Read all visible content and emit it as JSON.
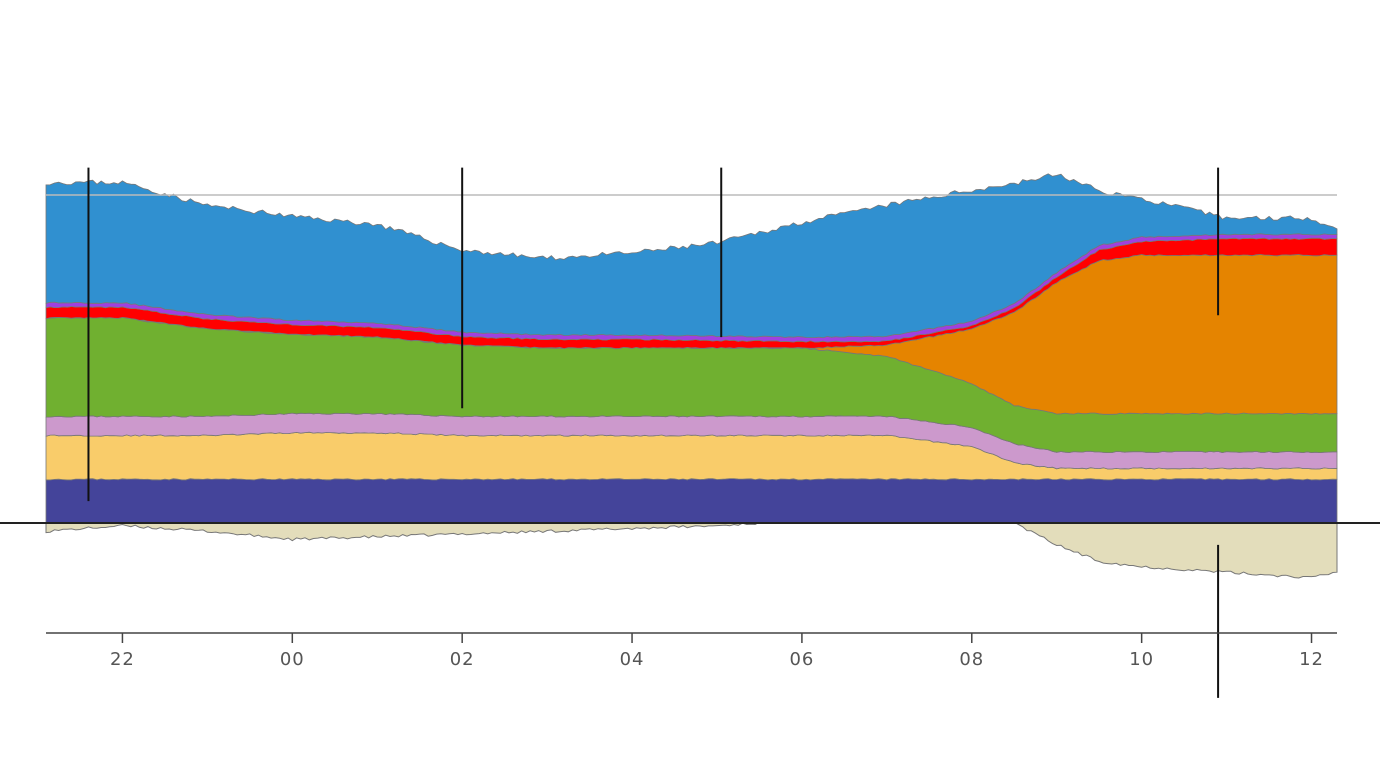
{
  "chart_data": {
    "type": "area",
    "x_ticks": [
      "22",
      "00",
      "02",
      "04",
      "06",
      "08",
      "10",
      "12"
    ],
    "x_domain": [
      21.1,
      36.3
    ],
    "ylim": [
      -20,
      60
    ],
    "grid": false,
    "stacked": true,
    "colors": {
      "blue": "#3090d0",
      "purple": "#a040e0",
      "red": "#ff0000",
      "orange": "#e58400",
      "green": "#70b030",
      "pink": "#cc99cc",
      "yellow": "#f9cc6a",
      "navy": "#44449a",
      "negative": "#e3ddbb",
      "outline": "#777777"
    },
    "x": [
      21.1,
      22,
      23,
      24,
      25,
      26,
      27,
      28,
      29,
      30,
      31,
      32,
      32.5,
      33,
      33.5,
      34,
      35,
      36,
      36.3
    ],
    "series": [
      {
        "key": "navy",
        "values": [
          8,
          8,
          8,
          8,
          8,
          8,
          8,
          8,
          8,
          8,
          8,
          8,
          8,
          8,
          8,
          8,
          8,
          8,
          8
        ]
      },
      {
        "key": "yellow",
        "values": [
          8,
          8,
          8,
          8.5,
          8.5,
          8,
          8,
          8,
          8,
          8,
          8,
          6,
          3,
          2,
          2,
          2,
          2,
          2,
          2
        ]
      },
      {
        "key": "pink",
        "values": [
          3.5,
          3.5,
          3.5,
          3.5,
          3.5,
          3.5,
          3.5,
          3.5,
          3.5,
          3.5,
          3.5,
          3.5,
          3.5,
          3,
          3,
          3,
          3,
          3,
          3
        ]
      },
      {
        "key": "green",
        "values": [
          18,
          18,
          16,
          14.5,
          14,
          13,
          12.5,
          12.5,
          12.5,
          12.5,
          11,
          8,
          7,
          7,
          7,
          7,
          7,
          7,
          7
        ]
      },
      {
        "key": "orange",
        "values": [
          0,
          0,
          0,
          0,
          0,
          0,
          0,
          0,
          0,
          0,
          2,
          10,
          17,
          24,
          28,
          29,
          29,
          29,
          29
        ]
      },
      {
        "key": "red",
        "values": [
          2,
          2,
          1.8,
          1.8,
          1.8,
          1.6,
          1.6,
          1.6,
          1.4,
          1.2,
          0.8,
          0.6,
          0.8,
          1,
          2,
          2.5,
          3,
          3,
          3
        ]
      },
      {
        "key": "purple",
        "values": [
          0.8,
          0.8,
          0.8,
          0.8,
          0.8,
          0.8,
          0.8,
          0.8,
          0.8,
          0.8,
          0.8,
          0.8,
          0.8,
          0.8,
          0.8,
          0.8,
          0.8,
          0.8,
          0.8
        ]
      },
      {
        "key": "blue",
        "values": [
          22,
          22,
          20,
          19,
          18,
          15,
          14,
          15,
          17,
          21,
          24,
          24,
          22,
          18,
          10,
          7,
          3,
          3,
          1
        ]
      }
    ],
    "negative_series": {
      "key": "negative",
      "values": [
        -1.5,
        -0.5,
        -1.5,
        -3,
        -2.5,
        -2,
        -1.5,
        -1,
        -0.5,
        0.5,
        0.5,
        0.5,
        0,
        -4,
        -7,
        -8,
        -9,
        -10,
        -9
      ]
    },
    "top_reference_line": 60,
    "markers": [
      {
        "x": 21.6,
        "y_top": 65,
        "y_bottom": 4
      },
      {
        "x": 26.0,
        "y_top": 65,
        "y_bottom": 21
      },
      {
        "x": 29.05,
        "y_top": 65,
        "y_bottom": 34
      },
      {
        "x": 34.9,
        "y_top": 65,
        "y_bottom": 38
      },
      {
        "x": 34.9,
        "y_top": -4,
        "y_bottom": -32
      }
    ]
  }
}
